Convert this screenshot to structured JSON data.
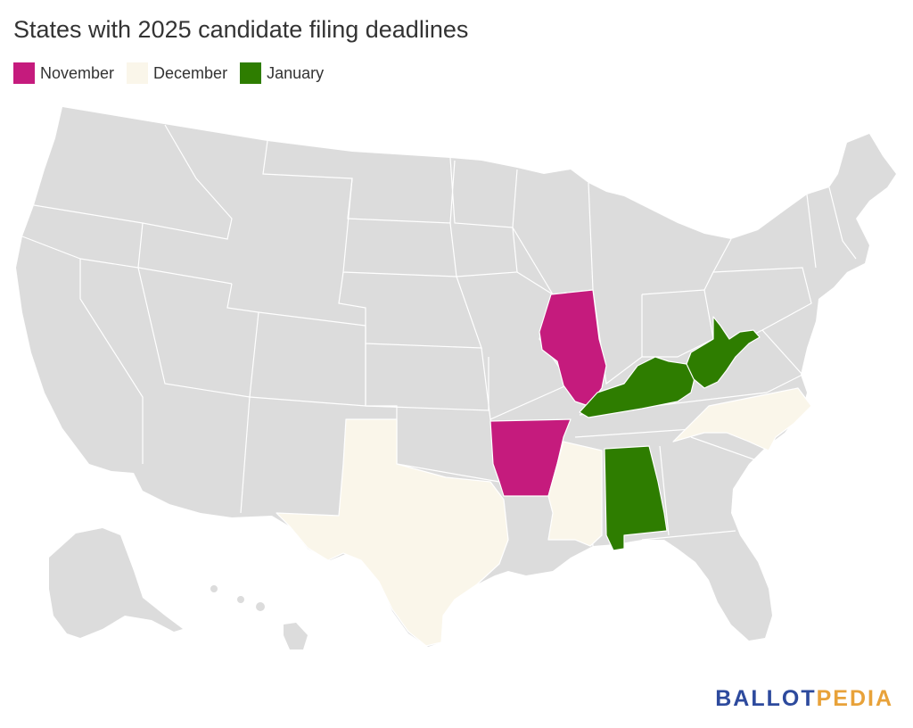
{
  "title": "States with 2025 candidate filing deadlines",
  "legend": [
    {
      "label": "November",
      "color": "#c51b7d"
    },
    {
      "label": "December",
      "color": "#faf6ea"
    },
    {
      "label": "January",
      "color": "#2e7d00"
    }
  ],
  "colors": {
    "default_state": "#dcdcdc",
    "border": "#ffffff"
  },
  "states": {
    "Illinois": "November",
    "Arkansas": "November",
    "Texas": "December",
    "Mississippi": "December",
    "North Carolina": "December",
    "Kentucky": "January",
    "West Virginia": "January",
    "Alabama": "January"
  },
  "logo": {
    "part1": "BALLOT",
    "part2": "PEDIA"
  }
}
